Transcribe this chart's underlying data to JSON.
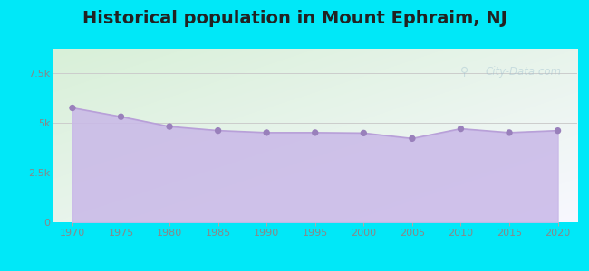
{
  "title": "Historical population in Mount Ephraim, NJ",
  "title_fontsize": 14,
  "title_fontweight": "bold",
  "years": [
    1970,
    1975,
    1980,
    1985,
    1990,
    1995,
    2000,
    2005,
    2010,
    2015,
    2020
  ],
  "population": [
    5765,
    5322,
    4826,
    4620,
    4517,
    4517,
    4495,
    4222,
    4712,
    4517,
    4618
  ],
  "line_color": "#b8a0d8",
  "fill_color": "#c9b8e8",
  "fill_alpha": 0.85,
  "marker_color": "#9980bb",
  "marker_size": 28,
  "bg_outer": "#00e8f8",
  "bg_top_left": "#d8f0d8",
  "bg_bottom_right": "#f8f8ff",
  "xlim": [
    1968,
    2022
  ],
  "ylim": [
    0,
    8750
  ],
  "yticks": [
    0,
    2500,
    5000,
    7500
  ],
  "ytick_labels": [
    "0",
    "2.5k",
    "5k",
    "7.5k"
  ],
  "xticks": [
    1970,
    1975,
    1980,
    1985,
    1990,
    1995,
    2000,
    2005,
    2010,
    2015,
    2020
  ],
  "grid_color": "#cccccc",
  "watermark_text": "City-Data.com",
  "watermark_alpha": 0.4,
  "tick_label_color": "#888888",
  "tick_label_fontsize": 8
}
